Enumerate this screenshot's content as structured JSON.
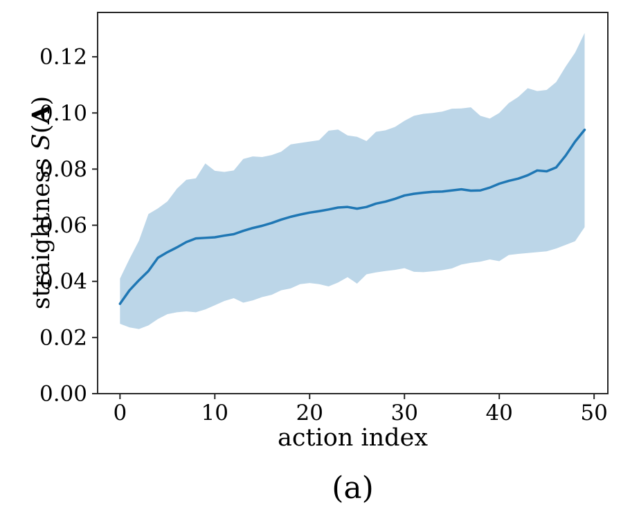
{
  "figure": {
    "caption": "(a)"
  },
  "chart_data": {
    "type": "line",
    "title": "",
    "xlabel": "action index",
    "ylabel": "straightness S(A)",
    "ylabel_parts": {
      "prefix": "straightness ",
      "func": "S",
      "open_paren": "(",
      "arg": "A",
      "close_paren": ")"
    },
    "legend": "none",
    "grid": false,
    "xlim": [
      -2.36,
      51.45
    ],
    "ylim": [
      0,
      0.1358
    ],
    "x_ticks": [
      0,
      10,
      20,
      30,
      40,
      50
    ],
    "x_tick_labels": [
      "0",
      "10",
      "20",
      "30",
      "40",
      "50"
    ],
    "y_ticks": [
      0.0,
      0.02,
      0.04,
      0.06,
      0.08,
      0.1,
      0.12
    ],
    "y_tick_labels": [
      "0.00",
      "0.02",
      "0.04",
      "0.06",
      "0.08",
      "0.10",
      "0.12"
    ],
    "x": [
      0,
      1,
      2,
      3,
      4,
      5,
      6,
      7,
      8,
      9,
      10,
      11,
      12,
      13,
      14,
      15,
      16,
      17,
      18,
      19,
      20,
      21,
      22,
      23,
      24,
      25,
      26,
      27,
      28,
      29,
      30,
      31,
      32,
      33,
      34,
      35,
      36,
      37,
      38,
      39,
      40,
      41,
      42,
      43,
      44,
      45,
      46,
      47,
      48,
      49
    ],
    "series": [
      {
        "name": "mean",
        "values": [
          0.032,
          0.0368,
          0.0404,
          0.0437,
          0.0484,
          0.0504,
          0.0521,
          0.054,
          0.0553,
          0.0555,
          0.0557,
          0.0563,
          0.0568,
          0.058,
          0.059,
          0.0598,
          0.0608,
          0.062,
          0.063,
          0.0638,
          0.0645,
          0.065,
          0.0656,
          0.0663,
          0.0665,
          0.0659,
          0.0665,
          0.0677,
          0.0684,
          0.0694,
          0.0706,
          0.0712,
          0.0716,
          0.0719,
          0.072,
          0.0724,
          0.0728,
          0.0723,
          0.0724,
          0.0734,
          0.0748,
          0.0758,
          0.0766,
          0.0778,
          0.0795,
          0.0792,
          0.0806,
          0.0848,
          0.0898,
          0.094
        ]
      },
      {
        "name": "band_upper",
        "values": [
          0.041,
          0.048,
          0.0545,
          0.064,
          0.066,
          0.0685,
          0.073,
          0.0762,
          0.0767,
          0.082,
          0.0794,
          0.079,
          0.0795,
          0.0836,
          0.0845,
          0.0843,
          0.085,
          0.0862,
          0.0888,
          0.0893,
          0.0898,
          0.0903,
          0.0937,
          0.0941,
          0.092,
          0.0915,
          0.09,
          0.0933,
          0.0938,
          0.095,
          0.0972,
          0.099,
          0.0997,
          0.1,
          0.1005,
          0.1015,
          0.1016,
          0.102,
          0.099,
          0.098,
          0.1,
          0.1035,
          0.1057,
          0.1088,
          0.1078,
          0.1082,
          0.111,
          0.1165,
          0.1215,
          0.1285
        ]
      },
      {
        "name": "band_lower",
        "values": [
          0.0249,
          0.0236,
          0.023,
          0.0243,
          0.0266,
          0.0283,
          0.029,
          0.0293,
          0.029,
          0.03,
          0.0315,
          0.033,
          0.034,
          0.0324,
          0.0332,
          0.0344,
          0.0352,
          0.0368,
          0.0375,
          0.039,
          0.0394,
          0.039,
          0.0382,
          0.0396,
          0.0415,
          0.0392,
          0.0425,
          0.0432,
          0.0437,
          0.0441,
          0.0447,
          0.0434,
          0.0433,
          0.0436,
          0.044,
          0.0446,
          0.046,
          0.0466,
          0.047,
          0.0478,
          0.0472,
          0.0494,
          0.0498,
          0.0501,
          0.0504,
          0.0507,
          0.0517,
          0.053,
          0.0543,
          0.0593
        ]
      }
    ],
    "colors": {
      "line": "#1f77b4",
      "band": "#bcd6e8",
      "spine": "#262626",
      "text": "#000000",
      "background": "#ffffff"
    }
  }
}
